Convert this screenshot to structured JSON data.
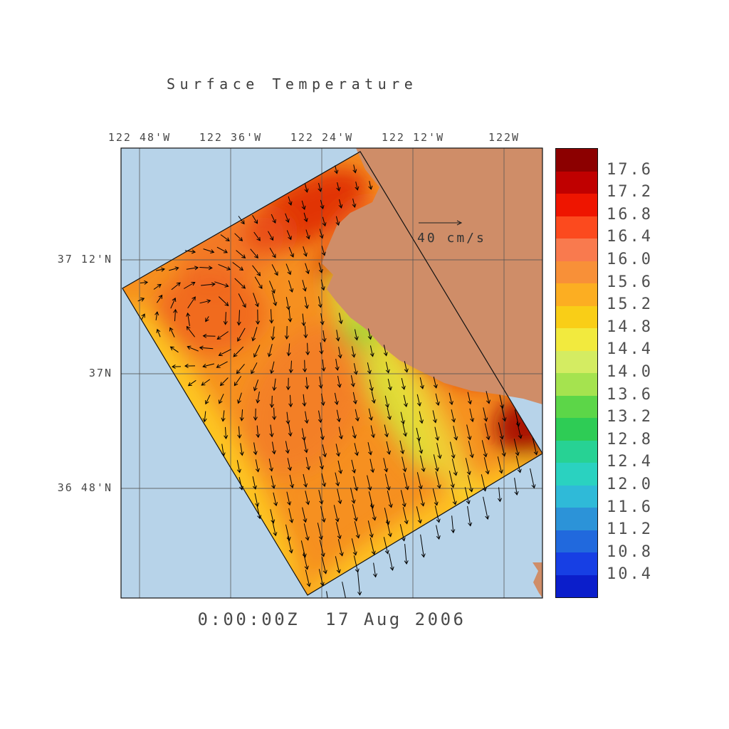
{
  "title": "Surface Temperature",
  "timestamp": "0:00:00Z  17 Aug 2006",
  "vector_scale": {
    "label": "40 cm/s"
  },
  "axes": {
    "x_ticks": [
      "122 48'W",
      "122 36'W",
      "122 24'W",
      "122 12'W",
      "122W"
    ],
    "y_ticks": [
      "37 12'N",
      "37N",
      "36 48'N"
    ]
  },
  "colorbar": {
    "tick_labels": [
      "17.6",
      "17.2",
      "16.8",
      "16.4",
      "16.0",
      "15.6",
      "15.2",
      "14.8",
      "14.4",
      "14.0",
      "13.6",
      "13.2",
      "12.8",
      "12.4",
      "12.0",
      "11.6",
      "11.2",
      "10.8",
      "10.4"
    ],
    "band_colors_top_to_bottom": [
      "#8c0000",
      "#c00000",
      "#ee1500",
      "#fc4a1e",
      "#f97a4e",
      "#f89038",
      "#fcae22",
      "#f9ce17",
      "#f2ea3e",
      "#d4ec62",
      "#a5e34f",
      "#5cd648",
      "#2ecc55",
      "#27d294",
      "#2ad2c0",
      "#2fbad8",
      "#2c93d8",
      "#2169dd",
      "#173fe4",
      "#0b1ecb"
    ]
  },
  "colors": {
    "ocean": "#b7d3e9",
    "land": "#cf8d68",
    "field_base": "#f69020",
    "grid": "#555555",
    "frame": "#111111",
    "domain_outline": "#111111",
    "arrow": "#000000"
  },
  "chart_data": {
    "type": "heatmap",
    "title": "Surface Temperature",
    "time_label": "0:00:00Z  17 Aug 2006",
    "x_tick_labels": [
      "122 48'W",
      "122 36'W",
      "122 24'W",
      "122 12'W",
      "122W"
    ],
    "y_tick_labels": [
      "37 12'N",
      "37N",
      "36 48'N"
    ],
    "colorbar_tick_labels": [
      "17.6",
      "17.2",
      "16.8",
      "16.4",
      "16.0",
      "15.6",
      "15.2",
      "14.8",
      "14.4",
      "14.0",
      "13.6",
      "13.2",
      "12.8",
      "12.4",
      "12.0",
      "11.6",
      "11.2",
      "10.8",
      "10.4"
    ],
    "colorbar_range": [
      10.4,
      17.6
    ],
    "colorbar_step": 0.4,
    "overlay": "surface current vectors (quiver); reference arrow = 40 cm/s",
    "domain_note": "temperature field shown on a rotated model domain over the ocean off the central California coast; land mass in upper right",
    "estimated_field_features": [
      {
        "feature": "warm patch along northern boundary near coast",
        "approx_value": 16.8
      },
      {
        "feature": "warm eddy with closed circulation, northwest of domain center",
        "approx_value": 16.2
      },
      {
        "feature": "background offshore water",
        "approx_value": 15.8
      },
      {
        "feature": "cool band running NNW-SSE through domain center",
        "approx_value": 15.0
      },
      {
        "feature": "coolest filament (yellow-green)",
        "approx_value": 14.8
      },
      {
        "feature": "warmest patch at eastern corner near the bay",
        "approx_value": 17.4
      },
      {
        "feature": "southwestern and southern boundary band",
        "approx_value": 15.3
      },
      {
        "feature": "strong southward outflow vectors across southeastern boundary",
        "approx_value": null
      }
    ],
    "estimated_grid": {
      "description": "coarse 5x5 temperature estimate across the rotated domain, rows from NW corner to SE corner, cols from SW edge to coastal edge",
      "values": [
        [
          16.0,
          16.4,
          16.8,
          16.4,
          16.2
        ],
        [
          16.2,
          16.4,
          16.0,
          15.6,
          16.0
        ],
        [
          15.8,
          16.0,
          15.6,
          15.0,
          16.8
        ],
        [
          15.6,
          15.8,
          15.2,
          14.8,
          17.2
        ],
        [
          15.2,
          15.4,
          15.6,
          15.2,
          15.6
        ]
      ]
    }
  }
}
